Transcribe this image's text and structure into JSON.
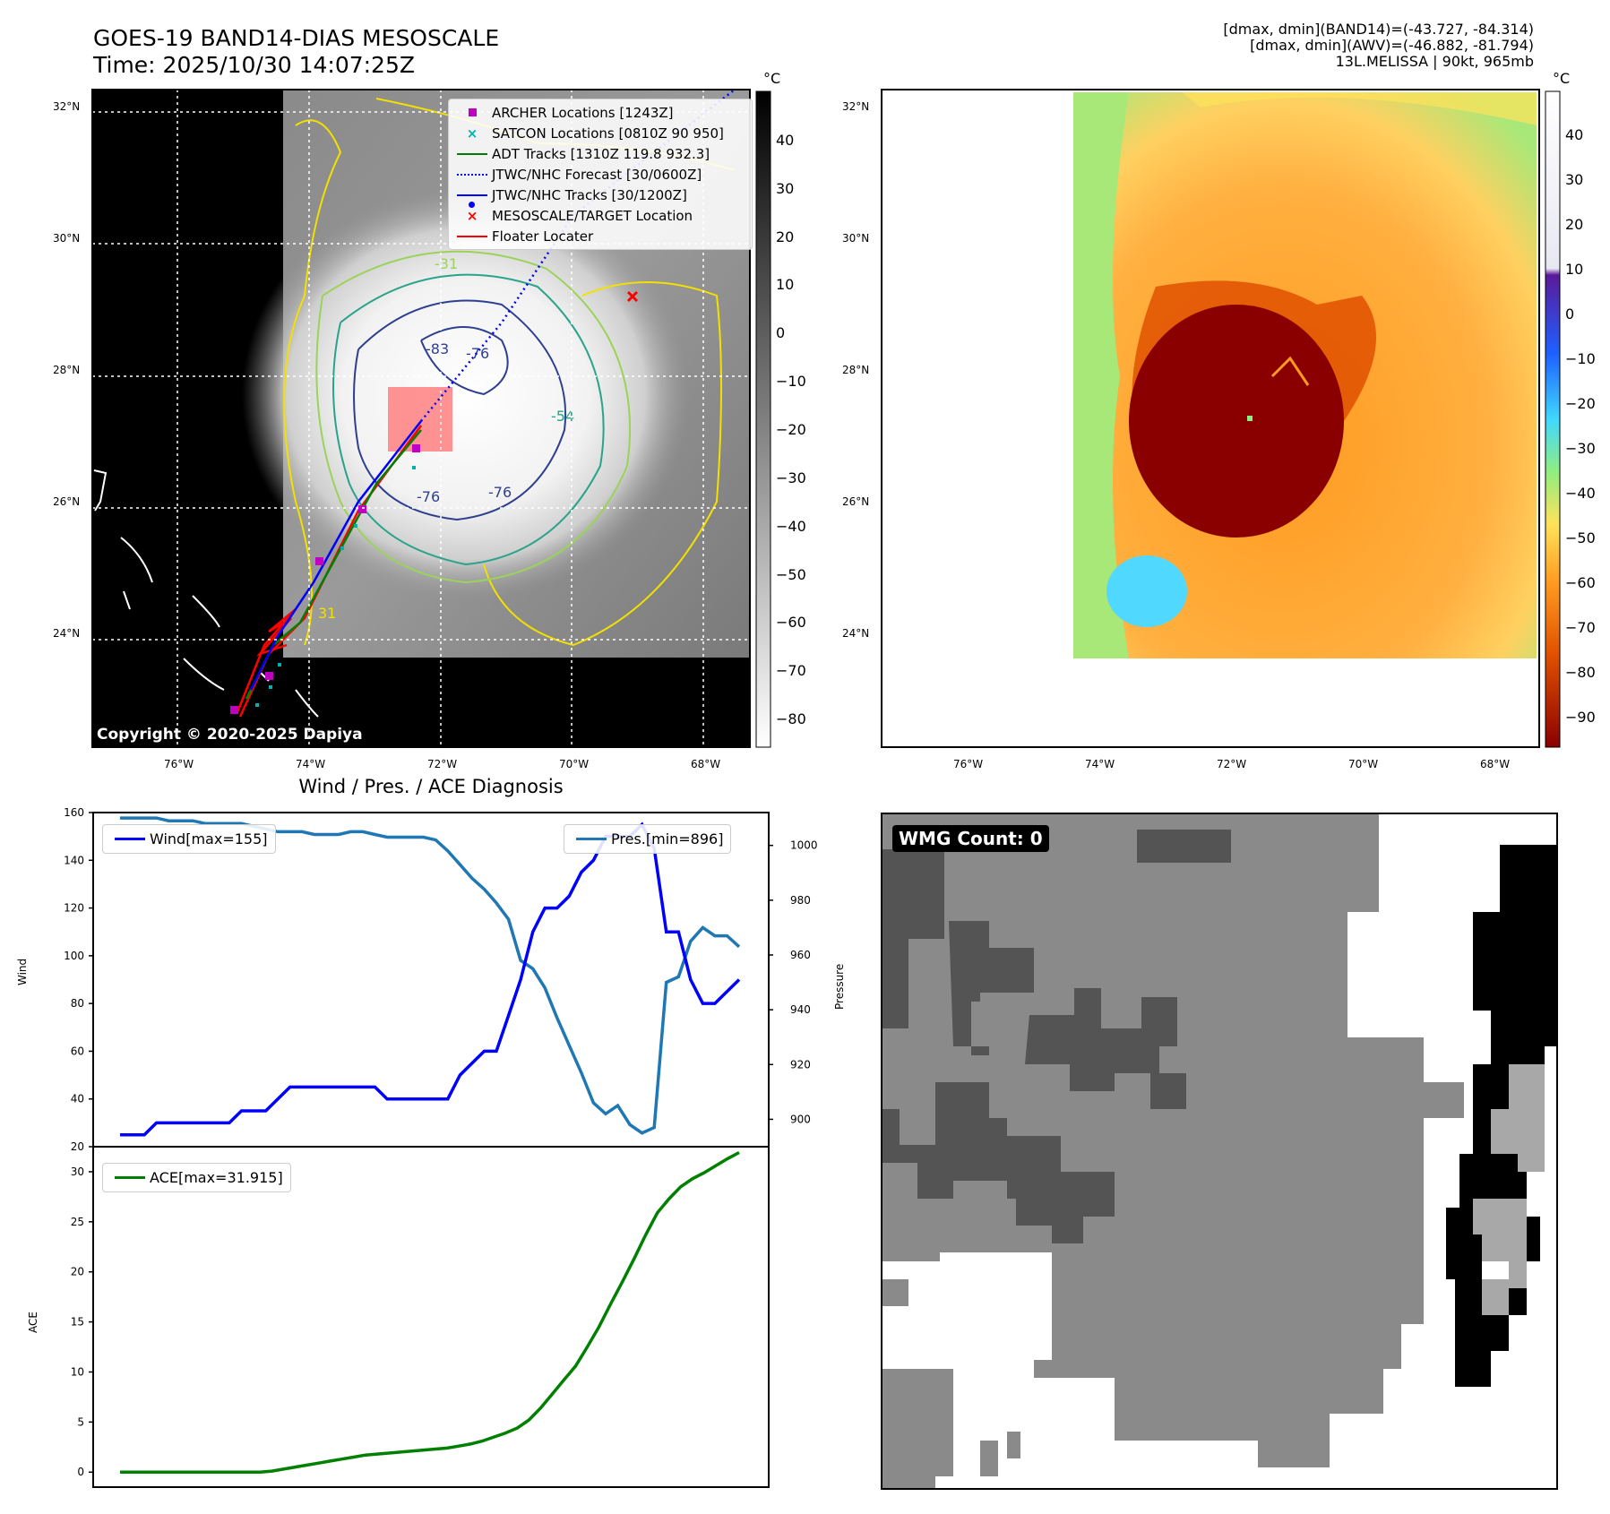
{
  "header": {
    "title_line1": "GOES-19 BAND14-DIAS MESOSCALE",
    "title_line2": "Time: 2025/10/30 14:07:25Z",
    "info_line1": "[dmax, dmin](BAND14)=(-43.727, -84.314)",
    "info_line2": "[dmax, dmin](AWV)=(-46.882, -81.794)",
    "info_line3": "13L.MELISSA | 90kt, 965mb"
  },
  "map_axes": {
    "lat_labels": [
      "32°N",
      "30°N",
      "28°N",
      "26°N",
      "24°N"
    ],
    "lon_labels": [
      "76°W",
      "74°W",
      "72°W",
      "70°W",
      "68°W"
    ]
  },
  "panel_ir": {
    "copyright": "Copyright © 2020-2025 Dapiya",
    "colorbar_unit": "°C",
    "colorbar_ticks": [
      "40",
      "30",
      "20",
      "10",
      "0",
      "−10",
      "−20",
      "−30",
      "−40",
      "−50",
      "−60",
      "−70",
      "−80"
    ],
    "contour_labels": [
      "-76",
      "-83",
      "-76",
      "-76",
      "-54",
      "-31",
      "31"
    ],
    "legend": [
      {
        "label": "ARCHER Locations [1243Z]",
        "icon": "magenta-square-icon",
        "color": "#c000c0"
      },
      {
        "label": "SATCON Locations [0810Z 90 950]",
        "icon": "cyan-x-icon",
        "color": "#00b0b0"
      },
      {
        "label": "ADT Tracks [1310Z 119.8 932.3]",
        "icon": "green-line-icon",
        "color": "#008000"
      },
      {
        "label": "JTWC/NHC Forecast [30/0600Z]",
        "icon": "blue-dotted-line-icon",
        "color": "#0000ff"
      },
      {
        "label": "JTWC/NHC Tracks [30/1200Z]",
        "icon": "blue-dot-line-icon",
        "color": "#0000ff"
      },
      {
        "label": "MESOSCALE/TARGET Location",
        "icon": "red-x-icon",
        "color": "#ff0000"
      },
      {
        "label": "Floater Locater",
        "icon": "red-line-icon",
        "color": "#ff0000"
      }
    ]
  },
  "panel_awv": {
    "colorbar_unit": "°C",
    "colorbar_ticks": [
      "40",
      "30",
      "20",
      "10",
      "0",
      "−10",
      "−20",
      "−30",
      "−40",
      "−50",
      "−60",
      "−70",
      "−80",
      "−90"
    ]
  },
  "panel_wmg": {
    "badge": "WMG Count: 0"
  },
  "chart_data": [
    {
      "type": "line",
      "title": "Wind / Pres. / ACE Diagnosis",
      "ylabel": "Wind",
      "ylabel_right": "Pressure",
      "ylim": [
        20,
        160
      ],
      "ylim_right": [
        890,
        1012
      ],
      "yticks": [
        20,
        40,
        60,
        80,
        100,
        120,
        140,
        160
      ],
      "yticks_right": [
        900,
        920,
        940,
        960,
        980,
        1000
      ],
      "series": [
        {
          "name": "Wind[max=155]",
          "color": "#0000ff",
          "axis": "left",
          "values": [
            25,
            25,
            25,
            30,
            30,
            30,
            30,
            30,
            30,
            30,
            35,
            35,
            35,
            40,
            45,
            45,
            45,
            45,
            45,
            45,
            45,
            45,
            40,
            40,
            40,
            40,
            40,
            40,
            50,
            55,
            60,
            60,
            75,
            90,
            110,
            120,
            120,
            125,
            135,
            140,
            150,
            150,
            150,
            155,
            145,
            110,
            110,
            90,
            80,
            80,
            85,
            90
          ]
        },
        {
          "name": "Pres.[min=896]",
          "color": "#1f77b4",
          "axis": "right",
          "values": [
            1010,
            1010,
            1010,
            1010,
            1009,
            1009,
            1009,
            1008,
            1008,
            1008,
            1008,
            1007,
            1006,
            1005,
            1005,
            1005,
            1004,
            1004,
            1004,
            1005,
            1005,
            1004,
            1003,
            1003,
            1003,
            1003,
            1002,
            998,
            993,
            988,
            984,
            979,
            973,
            958,
            955,
            948,
            937,
            927,
            917,
            906,
            902,
            905,
            898,
            895,
            897,
            950,
            952,
            965,
            970,
            967,
            967,
            963
          ]
        }
      ]
    },
    {
      "type": "line",
      "ylabel": "ACE",
      "ylim": [
        -1.5,
        32.5
      ],
      "yticks": [
        0,
        5,
        10,
        15,
        20,
        25,
        30
      ],
      "series": [
        {
          "name": "ACE[max=31.915]",
          "color": "#008000",
          "values": [
            0,
            0,
            0,
            0,
            0,
            0,
            0,
            0,
            0,
            0,
            0,
            0,
            0,
            0.1,
            0.3,
            0.5,
            0.7,
            0.9,
            1.1,
            1.3,
            1.5,
            1.7,
            1.8,
            1.9,
            2.0,
            2.1,
            2.2,
            2.3,
            2.4,
            2.6,
            2.8,
            3.1,
            3.5,
            3.9,
            4.4,
            5.2,
            6.4,
            7.8,
            9.2,
            10.6,
            12.5,
            14.5,
            16.8,
            19.0,
            21.3,
            23.7,
            25.9,
            27.3,
            28.5,
            29.3,
            29.9,
            30.6,
            31.3,
            31.915
          ]
        }
      ]
    }
  ]
}
